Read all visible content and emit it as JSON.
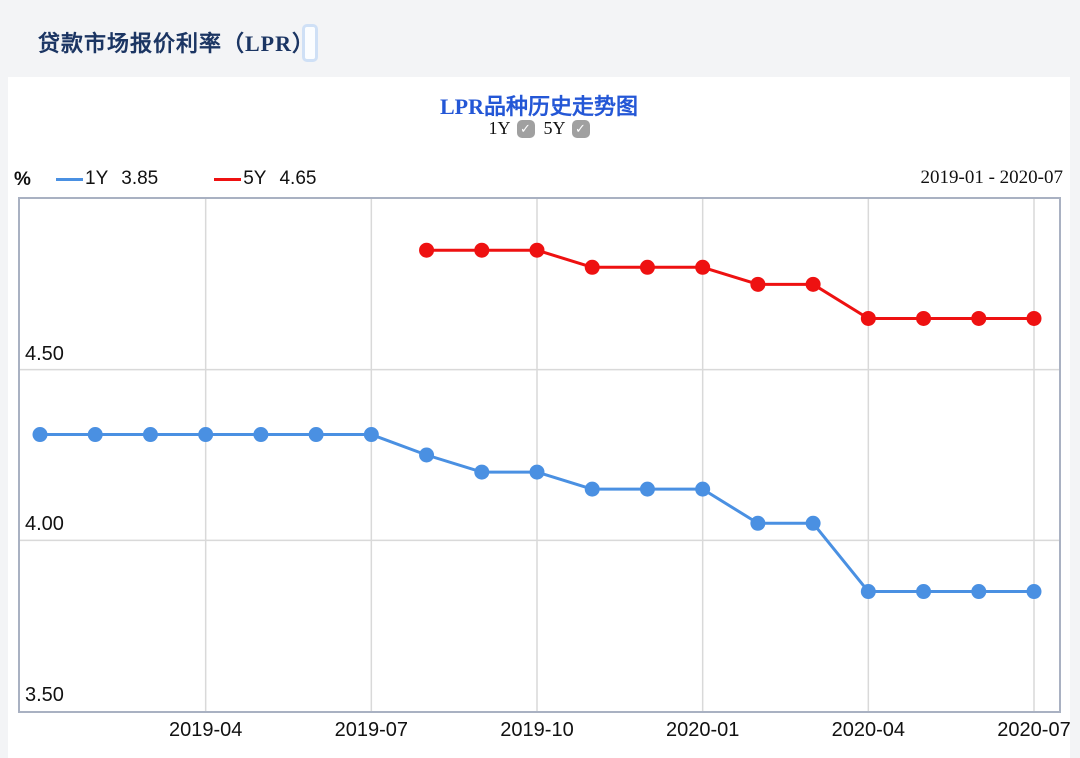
{
  "header": {
    "title": "贷款市场报价利率（LPR）"
  },
  "chart": {
    "title": "LPR品种历史走势图",
    "controls": [
      {
        "label": "1Y",
        "checked": true
      },
      {
        "label": "5Y",
        "checked": true
      }
    ],
    "checkmark_glyph": "✓",
    "unit_label": "%",
    "date_range": "2019-01 - 2020-07",
    "legend": [
      {
        "name": "1Y",
        "value": "3.85",
        "color": "#4a90e2"
      },
      {
        "name": "5Y",
        "value": "4.65",
        "color": "#ee1111"
      }
    ]
  },
  "chart_data": {
    "type": "line",
    "title": "LPR品种历史走势图",
    "x": [
      "2019-01",
      "2019-02",
      "2019-03",
      "2019-04",
      "2019-05",
      "2019-06",
      "2019-07",
      "2019-08",
      "2019-09",
      "2019-10",
      "2019-11",
      "2019-12",
      "2020-01",
      "2020-02",
      "2020-03",
      "2020-04",
      "2020-05",
      "2020-06",
      "2020-07"
    ],
    "series": [
      {
        "name": "1Y",
        "color": "#4a90e2",
        "values": [
          4.31,
          4.31,
          4.31,
          4.31,
          4.31,
          4.31,
          4.31,
          4.25,
          4.2,
          4.2,
          4.15,
          4.15,
          4.15,
          4.05,
          4.05,
          3.85,
          3.85,
          3.85,
          3.85
        ]
      },
      {
        "name": "5Y",
        "color": "#ee1111",
        "values": [
          null,
          null,
          null,
          null,
          null,
          null,
          null,
          4.85,
          4.85,
          4.85,
          4.8,
          4.8,
          4.8,
          4.75,
          4.75,
          4.65,
          4.65,
          4.65,
          4.65
        ]
      }
    ],
    "ylabel": "%",
    "ylim": [
      3.5,
      5.0
    ],
    "yticks": [
      {
        "value": 4.5,
        "label": "4.50"
      },
      {
        "value": 4.0,
        "label": "4.00"
      },
      {
        "value": 3.5,
        "label": "3.50"
      }
    ],
    "xticks": [
      {
        "index": 3,
        "label": "2019-04"
      },
      {
        "index": 6,
        "label": "2019-07"
      },
      {
        "index": 9,
        "label": "2019-10"
      },
      {
        "index": 12,
        "label": "2020-01"
      },
      {
        "index": 15,
        "label": "2020-04"
      },
      {
        "index": 18,
        "label": "2020-07"
      }
    ],
    "grid": true,
    "legend_position": "top-left"
  },
  "colors": {
    "page_bg": "#f3f4f6",
    "card_bg": "#ffffff",
    "header_text": "#1b3563",
    "chart_title_text": "#2457d6",
    "plot_border": "#a9b1c2",
    "gridline": "#d9d9d9",
    "checkbox_bg": "#a0a0a0",
    "axis_text": "#111111"
  }
}
